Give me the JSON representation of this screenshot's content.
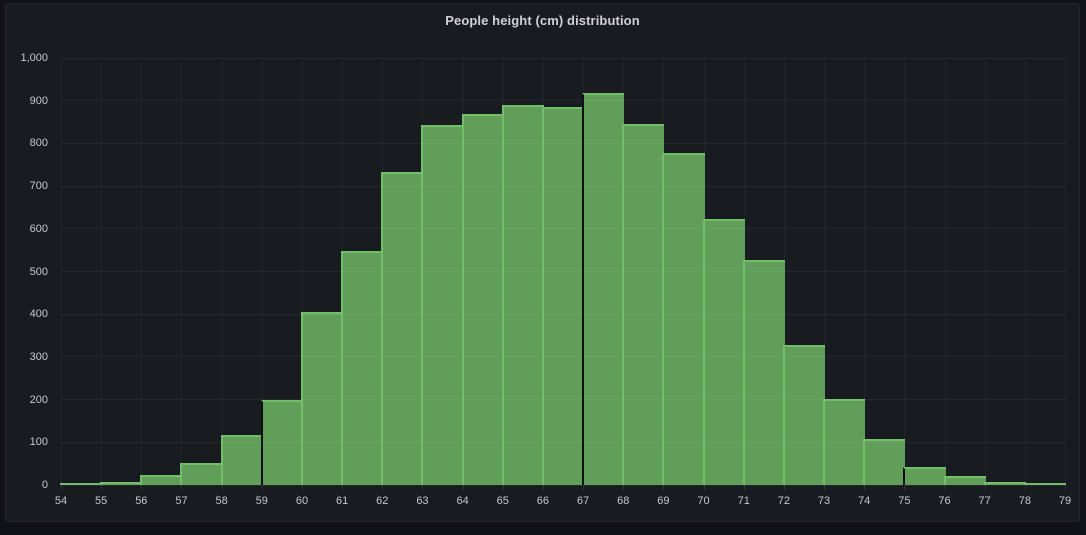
{
  "panel": {
    "title": "People height (cm) distribution"
  },
  "theme": {
    "page_bg": "#111217",
    "panel_bg": "#181b1f",
    "panel_border": "#23252b",
    "title_color": "#d0d1d6",
    "tick_label_color": "#c7c8cd",
    "bar_fill": "#609e5a",
    "bar_border": "#73bf69",
    "separator_color": "#0e0f13"
  },
  "chart_data": {
    "type": "bar",
    "subtype": "histogram",
    "title": "People height (cm) distribution",
    "xlabel": "",
    "ylabel": "",
    "bin_start": 54,
    "bin_size": 1,
    "categories": [
      54,
      55,
      56,
      57,
      58,
      59,
      60,
      61,
      62,
      63,
      64,
      65,
      66,
      67,
      68,
      69,
      70,
      71,
      72,
      73,
      74,
      75,
      76,
      77,
      78
    ],
    "values": [
      3,
      7,
      24,
      51,
      116,
      200,
      405,
      548,
      733,
      843,
      868,
      890,
      886,
      917,
      845,
      778,
      622,
      527,
      328,
      201,
      108,
      43,
      22,
      7,
      3
    ],
    "x_tick_labels": [
      "54",
      "55",
      "56",
      "57",
      "58",
      "59",
      "60",
      "61",
      "62",
      "63",
      "64",
      "65",
      "66",
      "67",
      "68",
      "69",
      "70",
      "71",
      "72",
      "73",
      "74",
      "75",
      "76",
      "77",
      "78",
      "79"
    ],
    "y_tick_labels": [
      "0",
      "100",
      "200",
      "300",
      "400",
      "500",
      "600",
      "700",
      "800",
      "900",
      "1,000"
    ],
    "xlim": [
      54,
      79
    ],
    "ylim": [
      0,
      1000
    ],
    "y_tick_step": 100,
    "grid": true,
    "legend": false,
    "group_separators_x": [
      59,
      67,
      75
    ]
  }
}
